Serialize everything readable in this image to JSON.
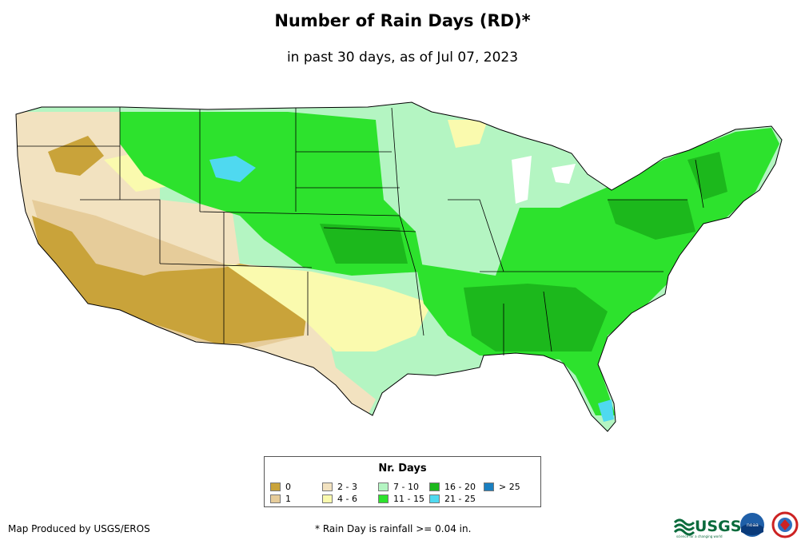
{
  "title": "Number of Rain Days (RD)*",
  "subtitle": "in past 30 days, as of Jul 07, 2023",
  "legend": {
    "title": "Nr. Days",
    "items": [
      {
        "label": "0",
        "color": "#c9a33a"
      },
      {
        "label": "1",
        "color": "#e6cc9a"
      },
      {
        "label": "2 - 3",
        "color": "#f2e2c0"
      },
      {
        "label": "4 - 6",
        "color": "#fafaae"
      },
      {
        "label": "7 - 10",
        "color": "#b4f5c2"
      },
      {
        "label": "11 - 15",
        "color": "#2de22d"
      },
      {
        "label": "16 - 20",
        "color": "#1cb81c"
      },
      {
        "label": "21 - 25",
        "color": "#4fd9f0"
      },
      {
        "label": "> 25",
        "color": "#1a7fc0"
      }
    ]
  },
  "credit": "Map Produced by USGS/EROS",
  "footnote": "* Rain Day is rainfall >= 0.04 in.",
  "logos": {
    "usgs": "USGS",
    "usgs_tagline": "science for a changing world",
    "noaa": "noaa",
    "nws_icon": "nws-logo-icon"
  }
}
